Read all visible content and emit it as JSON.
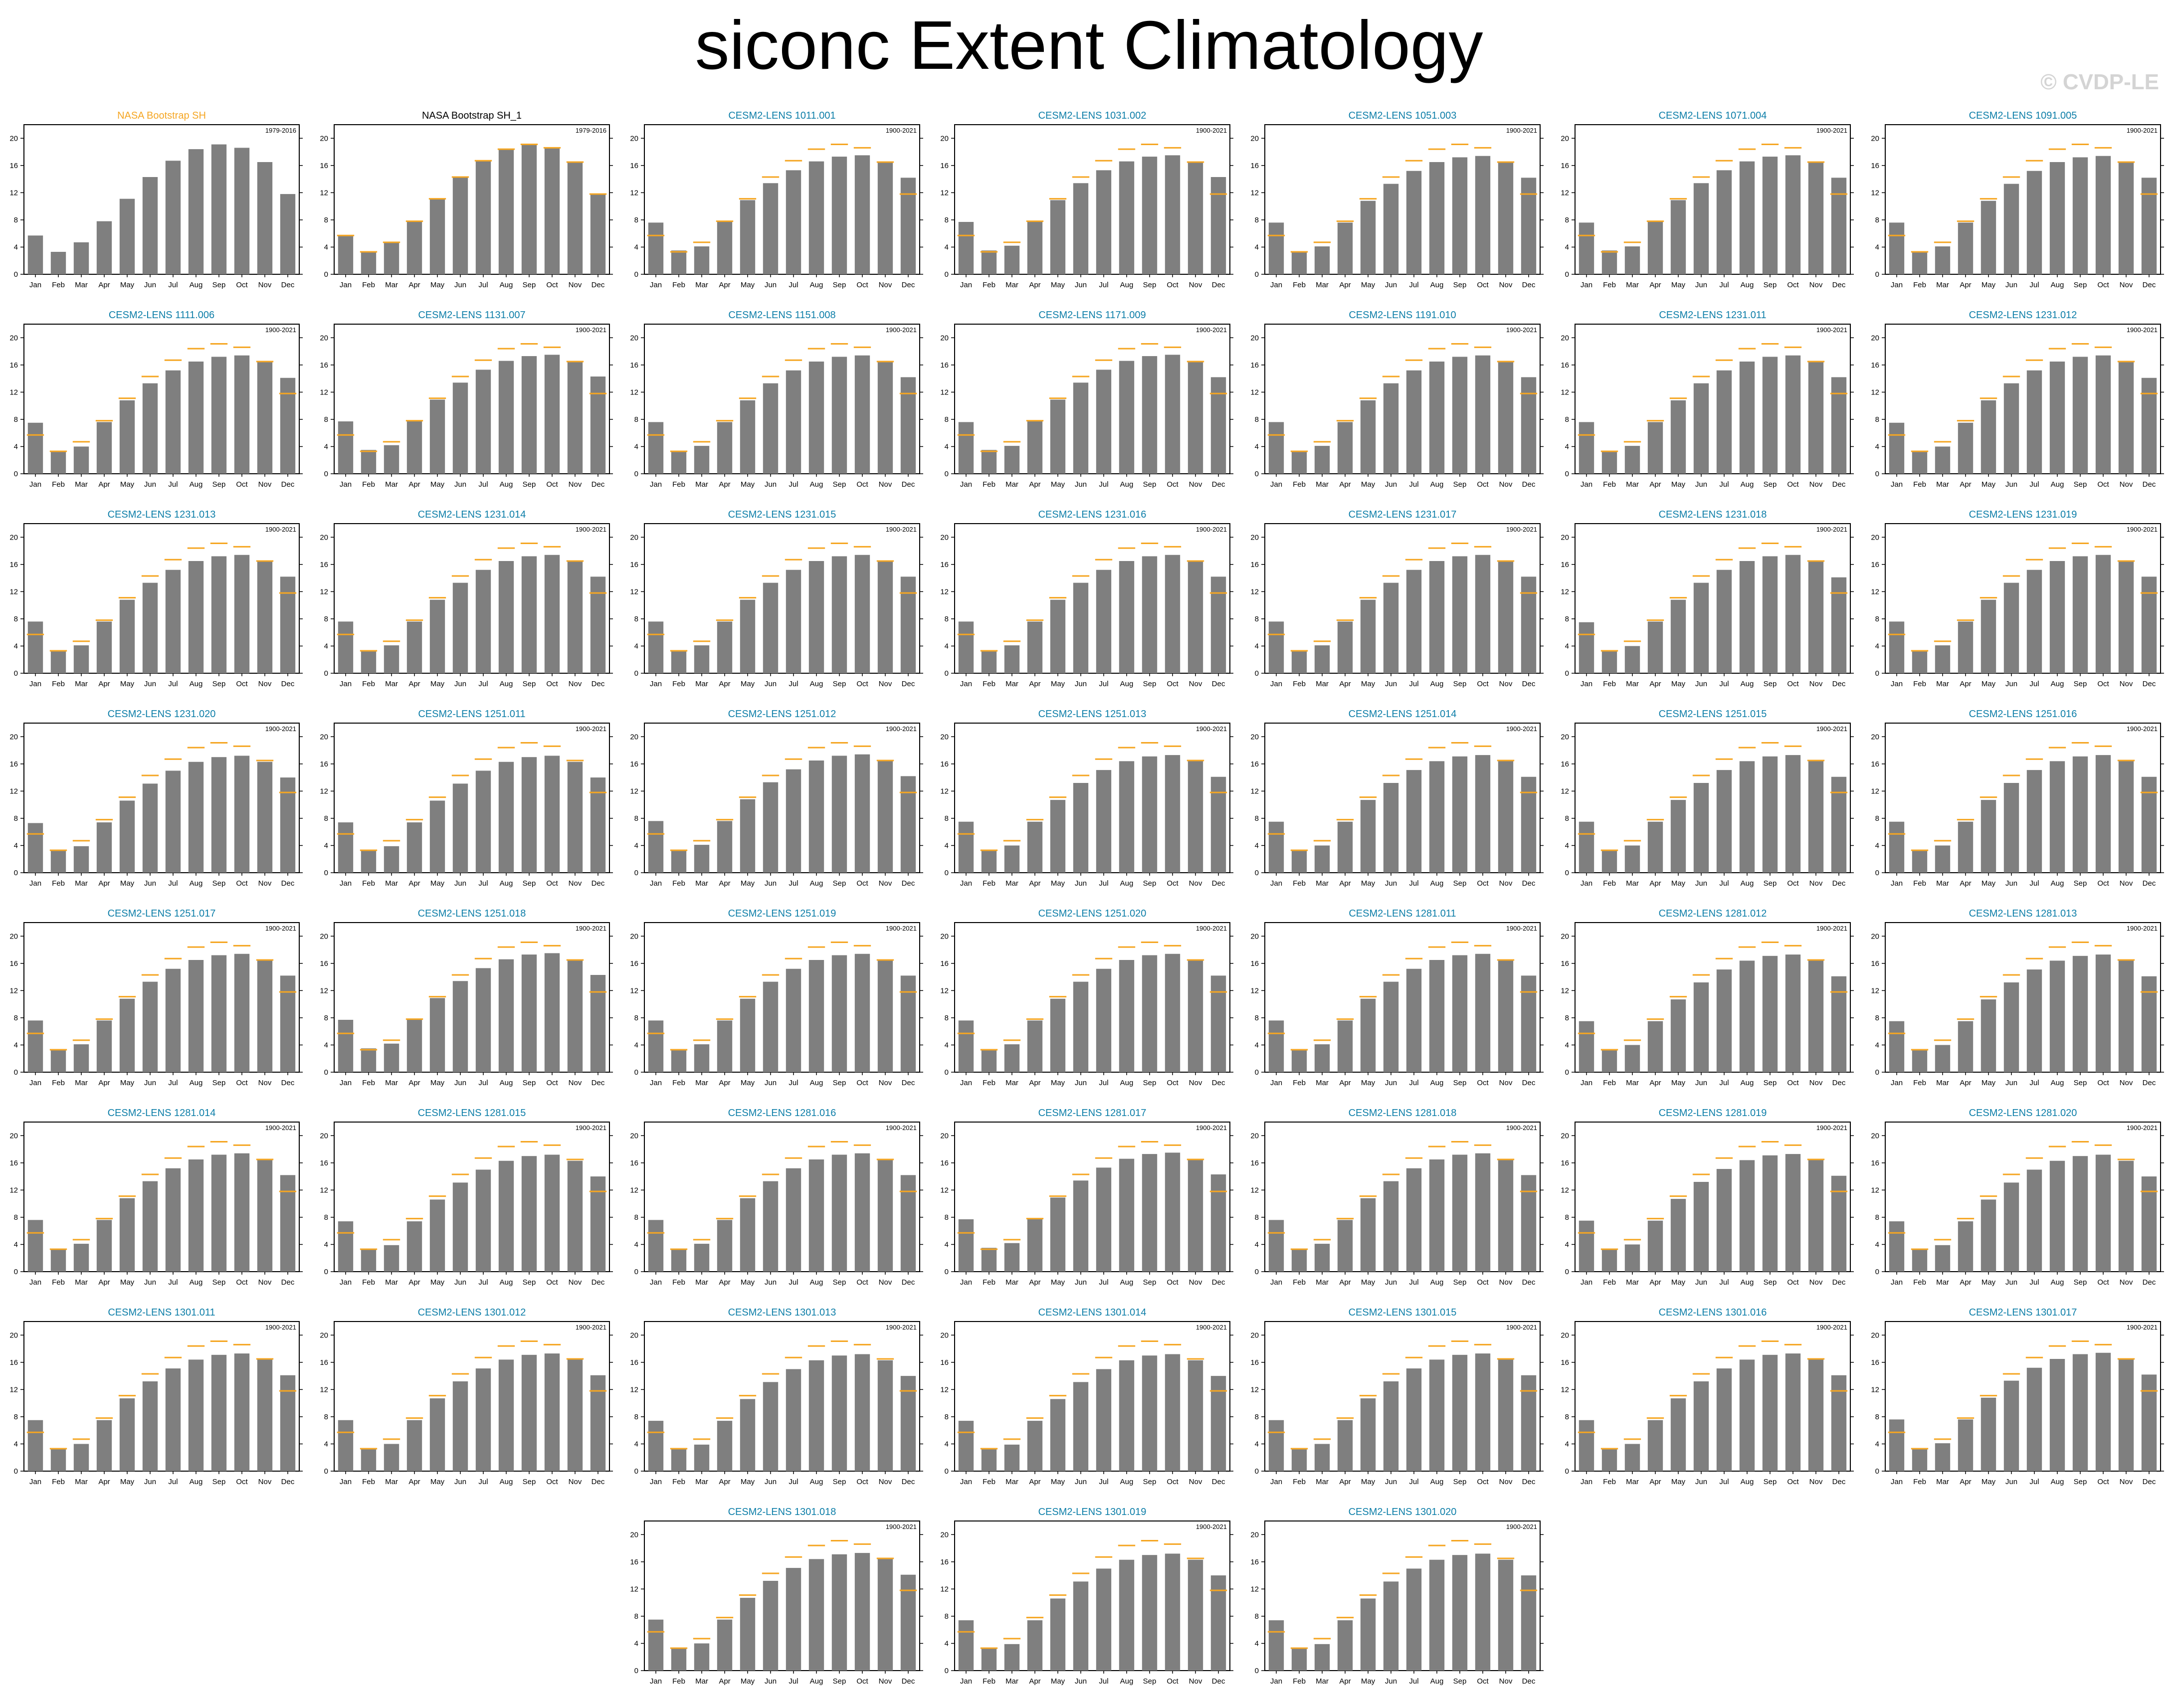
{
  "title": "siconc Extent Climatology",
  "watermark": "© CVDP-LE",
  "colors": {
    "bar": "#7f7f7f",
    "obs_line": "#f5a623",
    "model_title": "#0d7ea8",
    "obs_title": "#f5a623"
  },
  "chart_data": {
    "type": "bar",
    "categories": [
      "Jan",
      "Feb",
      "Mar",
      "Apr",
      "May",
      "Jun",
      "Jul",
      "Aug",
      "Sep",
      "Oct",
      "Nov",
      "Dec"
    ],
    "y_ticks": [
      0,
      4,
      8,
      12,
      16,
      20
    ],
    "ylim": [
      0,
      22
    ],
    "reference_series": {
      "name": "NASA Bootstrap SH",
      "period": "1979-2016",
      "values": [
        5.7,
        3.3,
        4.7,
        7.8,
        11.1,
        14.3,
        16.7,
        18.4,
        19.1,
        18.6,
        16.5,
        11.8
      ]
    },
    "panels": [
      {
        "title": "NASA Bootstrap SH",
        "style": "obs-a",
        "period": "1979-2016",
        "values": [
          5.7,
          3.3,
          4.7,
          7.8,
          11.1,
          14.3,
          16.7,
          18.4,
          19.1,
          18.6,
          16.5,
          11.8
        ],
        "show_reference": false
      },
      {
        "title": "NASA Bootstrap SH_1",
        "style": "obs-b",
        "period": "1979-2016",
        "values": [
          5.7,
          3.3,
          4.7,
          7.8,
          11.1,
          14.3,
          16.7,
          18.4,
          19.1,
          18.6,
          16.5,
          11.8
        ],
        "show_reference": true
      },
      {
        "title": "CESM2-LENS 1011.001",
        "style": "model",
        "period": "1900-2021",
        "values": [
          7.6,
          3.5,
          4.1,
          7.7,
          10.9,
          13.4,
          15.3,
          16.6,
          17.3,
          17.5,
          16.5,
          14.2
        ],
        "show_reference": true
      },
      {
        "title": "CESM2-LENS 1031.002",
        "style": "model",
        "period": "1900-2021",
        "values": [
          7.7,
          3.5,
          4.2,
          7.7,
          10.9,
          13.4,
          15.3,
          16.6,
          17.3,
          17.5,
          16.5,
          14.3
        ],
        "show_reference": true
      },
      {
        "title": "CESM2-LENS 1051.003",
        "style": "model",
        "period": "1900-2021",
        "values": [
          7.6,
          3.4,
          4.1,
          7.6,
          10.8,
          13.3,
          15.2,
          16.5,
          17.2,
          17.4,
          16.4,
          14.2
        ],
        "show_reference": true
      },
      {
        "title": "CESM2-LENS 1071.004",
        "style": "model",
        "period": "1900-2021",
        "values": [
          7.6,
          3.5,
          4.1,
          7.7,
          10.9,
          13.4,
          15.3,
          16.6,
          17.3,
          17.5,
          16.5,
          14.2
        ],
        "show_reference": true
      },
      {
        "title": "CESM2-LENS 1091.005",
        "style": "model",
        "period": "1900-2021",
        "values": [
          7.6,
          3.4,
          4.1,
          7.6,
          10.8,
          13.3,
          15.2,
          16.5,
          17.2,
          17.4,
          16.4,
          14.2
        ],
        "show_reference": true
      },
      {
        "title": "CESM2-LENS 1111.006",
        "style": "model",
        "period": "1900-2021",
        "values": [
          7.5,
          3.4,
          4.0,
          7.6,
          10.8,
          13.3,
          15.2,
          16.5,
          17.2,
          17.4,
          16.4,
          14.1
        ],
        "show_reference": true
      },
      {
        "title": "CESM2-LENS 1131.007",
        "style": "model",
        "period": "1900-2021",
        "values": [
          7.7,
          3.5,
          4.2,
          7.7,
          10.9,
          13.4,
          15.3,
          16.6,
          17.3,
          17.5,
          16.5,
          14.3
        ],
        "show_reference": true
      },
      {
        "title": "CESM2-LENS 1151.008",
        "style": "model",
        "period": "1900-2021",
        "values": [
          7.6,
          3.4,
          4.1,
          7.6,
          10.8,
          13.3,
          15.2,
          16.5,
          17.2,
          17.4,
          16.4,
          14.2
        ],
        "show_reference": true
      },
      {
        "title": "CESM2-LENS 1171.009",
        "style": "model",
        "period": "1900-2021",
        "values": [
          7.6,
          3.5,
          4.1,
          7.7,
          10.9,
          13.4,
          15.3,
          16.6,
          17.3,
          17.5,
          16.5,
          14.2
        ],
        "show_reference": true
      },
      {
        "title": "CESM2-LENS 1191.010",
        "style": "model",
        "period": "1900-2021",
        "values": [
          7.6,
          3.4,
          4.1,
          7.6,
          10.8,
          13.3,
          15.2,
          16.5,
          17.2,
          17.4,
          16.4,
          14.2
        ],
        "show_reference": true
      },
      {
        "title": "CESM2-LENS 1231.011",
        "style": "model",
        "period": "1900-2021",
        "values": [
          7.6,
          3.4,
          4.1,
          7.6,
          10.8,
          13.3,
          15.2,
          16.5,
          17.2,
          17.4,
          16.4,
          14.2
        ],
        "show_reference": true
      },
      {
        "title": "CESM2-LENS 1231.012",
        "style": "model",
        "period": "1900-2021",
        "values": [
          7.5,
          3.4,
          4.0,
          7.5,
          10.8,
          13.3,
          15.2,
          16.5,
          17.2,
          17.4,
          16.4,
          14.1
        ],
        "show_reference": true
      },
      {
        "title": "CESM2-LENS 1231.013",
        "style": "model",
        "period": "1900-2021",
        "values": [
          7.6,
          3.4,
          4.1,
          7.6,
          10.8,
          13.3,
          15.2,
          16.5,
          17.2,
          17.4,
          16.4,
          14.2
        ],
        "show_reference": true
      },
      {
        "title": "CESM2-LENS 1231.014",
        "style": "model",
        "period": "1900-2021",
        "values": [
          7.6,
          3.4,
          4.1,
          7.6,
          10.8,
          13.3,
          15.2,
          16.5,
          17.2,
          17.4,
          16.4,
          14.2
        ],
        "show_reference": true
      },
      {
        "title": "CESM2-LENS 1231.015",
        "style": "model",
        "period": "1900-2021",
        "values": [
          7.6,
          3.4,
          4.1,
          7.6,
          10.8,
          13.3,
          15.2,
          16.5,
          17.2,
          17.4,
          16.4,
          14.2
        ],
        "show_reference": true
      },
      {
        "title": "CESM2-LENS 1231.016",
        "style": "model",
        "period": "1900-2021",
        "values": [
          7.6,
          3.4,
          4.1,
          7.6,
          10.8,
          13.3,
          15.2,
          16.5,
          17.2,
          17.4,
          16.4,
          14.2
        ],
        "show_reference": true
      },
      {
        "title": "CESM2-LENS 1231.017",
        "style": "model",
        "period": "1900-2021",
        "values": [
          7.6,
          3.4,
          4.1,
          7.6,
          10.8,
          13.3,
          15.2,
          16.5,
          17.2,
          17.4,
          16.4,
          14.2
        ],
        "show_reference": true
      },
      {
        "title": "CESM2-LENS 1231.018",
        "style": "model",
        "period": "1900-2021",
        "values": [
          7.5,
          3.4,
          4.0,
          7.6,
          10.8,
          13.3,
          15.2,
          16.5,
          17.2,
          17.4,
          16.4,
          14.1
        ],
        "show_reference": true
      },
      {
        "title": "CESM2-LENS 1231.019",
        "style": "model",
        "period": "1900-2021",
        "values": [
          7.6,
          3.4,
          4.1,
          7.6,
          10.8,
          13.3,
          15.2,
          16.5,
          17.2,
          17.4,
          16.4,
          14.2
        ],
        "show_reference": true
      },
      {
        "title": "CESM2-LENS 1231.020",
        "style": "model",
        "period": "1900-2021",
        "values": [
          7.3,
          3.3,
          3.9,
          7.4,
          10.6,
          13.1,
          15.0,
          16.3,
          17.0,
          17.2,
          16.3,
          14.0
        ],
        "show_reference": true
      },
      {
        "title": "CESM2-LENS 1251.011",
        "style": "model",
        "period": "1900-2021",
        "values": [
          7.4,
          3.3,
          3.9,
          7.4,
          10.6,
          13.1,
          15.0,
          16.3,
          17.0,
          17.2,
          16.3,
          14.0
        ],
        "show_reference": true
      },
      {
        "title": "CESM2-LENS 1251.012",
        "style": "model",
        "period": "1900-2021",
        "values": [
          7.6,
          3.4,
          4.1,
          7.6,
          10.8,
          13.3,
          15.2,
          16.5,
          17.2,
          17.4,
          16.4,
          14.2
        ],
        "show_reference": true
      },
      {
        "title": "CESM2-LENS 1251.013",
        "style": "model",
        "period": "1900-2021",
        "values": [
          7.5,
          3.4,
          4.0,
          7.5,
          10.7,
          13.2,
          15.1,
          16.4,
          17.1,
          17.3,
          16.4,
          14.1
        ],
        "show_reference": true
      },
      {
        "title": "CESM2-LENS 1251.014",
        "style": "model",
        "period": "1900-2021",
        "values": [
          7.5,
          3.4,
          4.0,
          7.5,
          10.7,
          13.2,
          15.1,
          16.4,
          17.1,
          17.3,
          16.4,
          14.1
        ],
        "show_reference": true
      },
      {
        "title": "CESM2-LENS 1251.015",
        "style": "model",
        "period": "1900-2021",
        "values": [
          7.5,
          3.4,
          4.0,
          7.5,
          10.7,
          13.2,
          15.1,
          16.4,
          17.1,
          17.3,
          16.4,
          14.1
        ],
        "show_reference": true
      },
      {
        "title": "CESM2-LENS 1251.016",
        "style": "model",
        "period": "1900-2021",
        "values": [
          7.5,
          3.4,
          4.0,
          7.5,
          10.7,
          13.2,
          15.1,
          16.4,
          17.1,
          17.3,
          16.4,
          14.1
        ],
        "show_reference": true
      },
      {
        "title": "CESM2-LENS 1251.017",
        "style": "model",
        "period": "1900-2021",
        "values": [
          7.6,
          3.4,
          4.1,
          7.6,
          10.8,
          13.3,
          15.2,
          16.5,
          17.2,
          17.4,
          16.4,
          14.2
        ],
        "show_reference": true
      },
      {
        "title": "CESM2-LENS 1251.018",
        "style": "model",
        "period": "1900-2021",
        "values": [
          7.7,
          3.5,
          4.2,
          7.7,
          10.9,
          13.4,
          15.3,
          16.6,
          17.3,
          17.5,
          16.5,
          14.3
        ],
        "show_reference": true
      },
      {
        "title": "CESM2-LENS 1251.019",
        "style": "model",
        "period": "1900-2021",
        "values": [
          7.6,
          3.4,
          4.1,
          7.6,
          10.8,
          13.3,
          15.2,
          16.5,
          17.2,
          17.4,
          16.4,
          14.2
        ],
        "show_reference": true
      },
      {
        "title": "CESM2-LENS 1251.020",
        "style": "model",
        "period": "1900-2021",
        "values": [
          7.6,
          3.4,
          4.1,
          7.6,
          10.8,
          13.3,
          15.2,
          16.5,
          17.2,
          17.4,
          16.4,
          14.2
        ],
        "show_reference": true
      },
      {
        "title": "CESM2-LENS 1281.011",
        "style": "model",
        "period": "1900-2021",
        "values": [
          7.6,
          3.4,
          4.1,
          7.6,
          10.8,
          13.3,
          15.2,
          16.5,
          17.2,
          17.4,
          16.4,
          14.2
        ],
        "show_reference": true
      },
      {
        "title": "CESM2-LENS 1281.012",
        "style": "model",
        "period": "1900-2021",
        "values": [
          7.5,
          3.4,
          4.0,
          7.5,
          10.7,
          13.2,
          15.1,
          16.4,
          17.1,
          17.3,
          16.4,
          14.1
        ],
        "show_reference": true
      },
      {
        "title": "CESM2-LENS 1281.013",
        "style": "model",
        "period": "1900-2021",
        "values": [
          7.5,
          3.4,
          4.0,
          7.5,
          10.7,
          13.2,
          15.1,
          16.4,
          17.1,
          17.3,
          16.4,
          14.1
        ],
        "show_reference": true
      },
      {
        "title": "CESM2-LENS 1281.014",
        "style": "model",
        "period": "1900-2021",
        "values": [
          7.6,
          3.4,
          4.1,
          7.6,
          10.8,
          13.3,
          15.2,
          16.5,
          17.2,
          17.4,
          16.4,
          14.2
        ],
        "show_reference": true
      },
      {
        "title": "CESM2-LENS 1281.015",
        "style": "model",
        "period": "1900-2021",
        "values": [
          7.4,
          3.3,
          3.9,
          7.4,
          10.6,
          13.1,
          15.0,
          16.3,
          17.0,
          17.2,
          16.3,
          14.0
        ],
        "show_reference": true
      },
      {
        "title": "CESM2-LENS 1281.016",
        "style": "model",
        "period": "1900-2021",
        "values": [
          7.6,
          3.4,
          4.1,
          7.6,
          10.8,
          13.3,
          15.2,
          16.5,
          17.2,
          17.4,
          16.4,
          14.2
        ],
        "show_reference": true
      },
      {
        "title": "CESM2-LENS 1281.017",
        "style": "model",
        "period": "1900-2021",
        "values": [
          7.7,
          3.5,
          4.2,
          7.7,
          10.9,
          13.4,
          15.3,
          16.6,
          17.3,
          17.5,
          16.5,
          14.3
        ],
        "show_reference": true
      },
      {
        "title": "CESM2-LENS 1281.018",
        "style": "model",
        "period": "1900-2021",
        "values": [
          7.6,
          3.4,
          4.1,
          7.6,
          10.8,
          13.3,
          15.2,
          16.5,
          17.2,
          17.4,
          16.4,
          14.2
        ],
        "show_reference": true
      },
      {
        "title": "CESM2-LENS 1281.019",
        "style": "model",
        "period": "1900-2021",
        "values": [
          7.5,
          3.3,
          4.0,
          7.5,
          10.7,
          13.2,
          15.1,
          16.4,
          17.1,
          17.3,
          16.4,
          14.1
        ],
        "show_reference": true
      },
      {
        "title": "CESM2-LENS 1281.020",
        "style": "model",
        "period": "1900-2021",
        "values": [
          7.4,
          3.3,
          3.9,
          7.4,
          10.6,
          13.1,
          15.0,
          16.3,
          17.0,
          17.2,
          16.3,
          14.0
        ],
        "show_reference": true
      },
      {
        "title": "CESM2-LENS 1301.011",
        "style": "model",
        "period": "1900-2021",
        "values": [
          7.5,
          3.4,
          4.0,
          7.5,
          10.7,
          13.2,
          15.1,
          16.4,
          17.1,
          17.3,
          16.4,
          14.1
        ],
        "show_reference": true
      },
      {
        "title": "CESM2-LENS 1301.012",
        "style": "model",
        "period": "1900-2021",
        "values": [
          7.5,
          3.4,
          4.0,
          7.5,
          10.7,
          13.2,
          15.1,
          16.4,
          17.1,
          17.3,
          16.4,
          14.1
        ],
        "show_reference": true
      },
      {
        "title": "CESM2-LENS 1301.013",
        "style": "model",
        "period": "1900-2021",
        "values": [
          7.4,
          3.3,
          3.9,
          7.4,
          10.6,
          13.1,
          15.0,
          16.3,
          17.0,
          17.2,
          16.3,
          14.0
        ],
        "show_reference": true
      },
      {
        "title": "CESM2-LENS 1301.014",
        "style": "model",
        "period": "1900-2021",
        "values": [
          7.4,
          3.3,
          3.9,
          7.4,
          10.6,
          13.1,
          15.0,
          16.3,
          17.0,
          17.2,
          16.3,
          14.0
        ],
        "show_reference": true
      },
      {
        "title": "CESM2-LENS 1301.015",
        "style": "model",
        "period": "1900-2021",
        "values": [
          7.5,
          3.4,
          4.0,
          7.5,
          10.7,
          13.2,
          15.1,
          16.4,
          17.1,
          17.3,
          16.4,
          14.1
        ],
        "show_reference": true
      },
      {
        "title": "CESM2-LENS 1301.016",
        "style": "model",
        "period": "1900-2021",
        "values": [
          7.5,
          3.3,
          4.0,
          7.5,
          10.7,
          13.2,
          15.1,
          16.4,
          17.1,
          17.3,
          16.4,
          14.1
        ],
        "show_reference": true
      },
      {
        "title": "CESM2-LENS 1301.017",
        "style": "model",
        "period": "1900-2021",
        "values": [
          7.6,
          3.4,
          4.1,
          7.6,
          10.8,
          13.3,
          15.2,
          16.5,
          17.2,
          17.4,
          16.4,
          14.2
        ],
        "show_reference": true
      },
      {
        "title": "CESM2-LENS 1301.018",
        "style": "model",
        "period": "1900-2021",
        "values": [
          7.5,
          3.4,
          4.0,
          7.5,
          10.7,
          13.2,
          15.1,
          16.4,
          17.1,
          17.3,
          16.4,
          14.1
        ],
        "show_reference": true
      },
      {
        "title": "CESM2-LENS 1301.019",
        "style": "model",
        "period": "1900-2021",
        "values": [
          7.4,
          3.3,
          3.9,
          7.4,
          10.6,
          13.1,
          15.0,
          16.3,
          17.0,
          17.2,
          16.3,
          14.0
        ],
        "show_reference": true
      },
      {
        "title": "CESM2-LENS 1301.020",
        "style": "model",
        "period": "1900-2021",
        "values": [
          7.4,
          3.3,
          3.9,
          7.4,
          10.6,
          13.1,
          15.0,
          16.3,
          17.0,
          17.2,
          16.3,
          14.0
        ],
        "show_reference": true
      }
    ]
  }
}
